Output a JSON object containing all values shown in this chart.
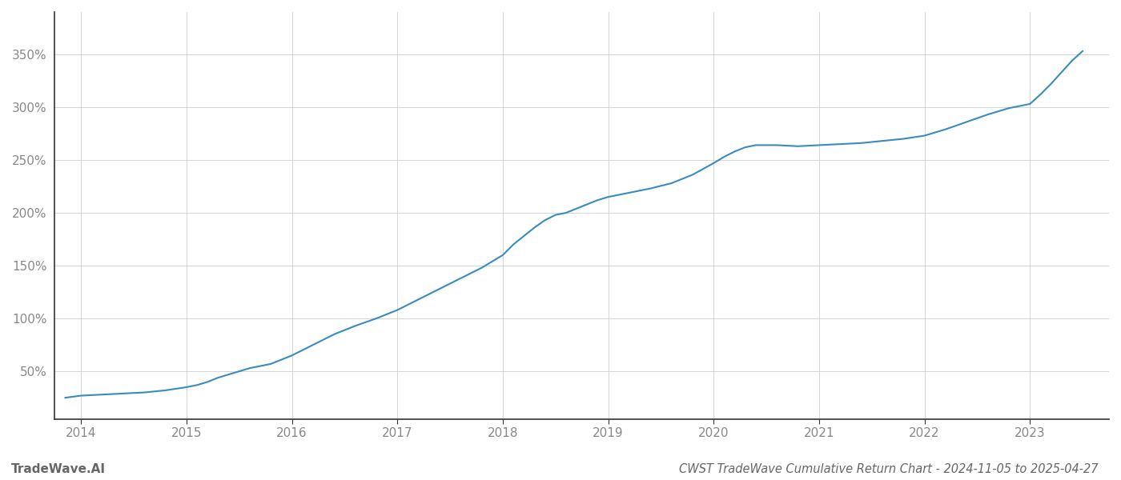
{
  "title": "CWST TradeWave Cumulative Return Chart - 2024-11-05 to 2025-04-27",
  "watermark": "TradeWave.AI",
  "line_color": "#3a8bbf",
  "background_color": "#ffffff",
  "grid_color": "#d0d0d0",
  "x_years": [
    2014,
    2015,
    2016,
    2017,
    2018,
    2019,
    2020,
    2021,
    2022,
    2023
  ],
  "data_points": [
    [
      2013.85,
      25
    ],
    [
      2014.0,
      27
    ],
    [
      2014.2,
      28
    ],
    [
      2014.4,
      29
    ],
    [
      2014.6,
      30
    ],
    [
      2014.8,
      32
    ],
    [
      2015.0,
      35
    ],
    [
      2015.1,
      37
    ],
    [
      2015.2,
      40
    ],
    [
      2015.3,
      44
    ],
    [
      2015.4,
      47
    ],
    [
      2015.5,
      50
    ],
    [
      2015.6,
      53
    ],
    [
      2015.8,
      57
    ],
    [
      2016.0,
      65
    ],
    [
      2016.2,
      75
    ],
    [
      2016.4,
      85
    ],
    [
      2016.6,
      93
    ],
    [
      2016.8,
      100
    ],
    [
      2017.0,
      108
    ],
    [
      2017.2,
      118
    ],
    [
      2017.4,
      128
    ],
    [
      2017.6,
      138
    ],
    [
      2017.8,
      148
    ],
    [
      2018.0,
      160
    ],
    [
      2018.1,
      170
    ],
    [
      2018.2,
      178
    ],
    [
      2018.3,
      186
    ],
    [
      2018.4,
      193
    ],
    [
      2018.5,
      198
    ],
    [
      2018.6,
      200
    ],
    [
      2018.7,
      204
    ],
    [
      2018.8,
      208
    ],
    [
      2018.9,
      212
    ],
    [
      2019.0,
      215
    ],
    [
      2019.2,
      219
    ],
    [
      2019.4,
      223
    ],
    [
      2019.6,
      228
    ],
    [
      2019.8,
      236
    ],
    [
      2020.0,
      247
    ],
    [
      2020.1,
      253
    ],
    [
      2020.2,
      258
    ],
    [
      2020.3,
      262
    ],
    [
      2020.4,
      264
    ],
    [
      2020.6,
      264
    ],
    [
      2020.8,
      263
    ],
    [
      2021.0,
      264
    ],
    [
      2021.2,
      265
    ],
    [
      2021.4,
      266
    ],
    [
      2021.6,
      268
    ],
    [
      2021.8,
      270
    ],
    [
      2022.0,
      273
    ],
    [
      2022.2,
      279
    ],
    [
      2022.4,
      286
    ],
    [
      2022.6,
      293
    ],
    [
      2022.8,
      299
    ],
    [
      2023.0,
      303
    ],
    [
      2023.1,
      312
    ],
    [
      2023.2,
      322
    ],
    [
      2023.3,
      333
    ],
    [
      2023.4,
      344
    ],
    [
      2023.5,
      353
    ]
  ],
  "ylim": [
    5,
    390
  ],
  "yticks": [
    50,
    100,
    150,
    200,
    250,
    300,
    350
  ],
  "xlim": [
    2013.75,
    2023.75
  ],
  "title_fontsize": 10.5,
  "watermark_fontsize": 11,
  "tick_label_color": "#888888",
  "title_color": "#666666",
  "spine_color": "#333333"
}
